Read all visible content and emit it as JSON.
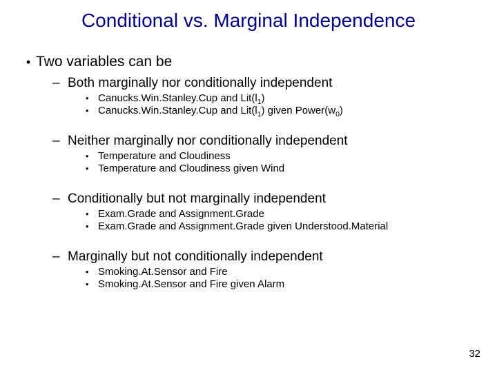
{
  "colors": {
    "title": "#000080",
    "text": "#000000",
    "background": "#ffffff"
  },
  "title": "Conditional vs. Marginal Independence",
  "lvl1": "Two variables can be",
  "sections": [
    {
      "heading": "Both marginally nor conditionally independent",
      "items": [
        {
          "pre": "Canucks.Win.Stanley.Cup and Lit(l",
          "sub": "1",
          "post": ")"
        },
        {
          "pre": "Canucks.Win.Stanley.Cup and Lit(l",
          "sub": "1",
          "mid": ") given Power(w",
          "sub2": "0",
          "post2": ")"
        }
      ]
    },
    {
      "heading": "Neither marginally nor conditionally independent",
      "items": [
        {
          "pre": "Temperature and Cloudiness"
        },
        {
          "pre": "Temperature and Cloudiness given Wind"
        }
      ]
    },
    {
      "heading": "Conditionally but not marginally independent",
      "items": [
        {
          "pre": "Exam.Grade and Assignment.Grade"
        },
        {
          "pre": "Exam.Grade and Assignment.Grade given Understood.Material"
        }
      ]
    },
    {
      "heading": "Marginally but not conditionally independent",
      "items": [
        {
          "pre": "Smoking.At.Sensor and Fire"
        },
        {
          "pre": "Smoking.At.Sensor and Fire given Alarm"
        }
      ]
    }
  ],
  "pagenum": "32"
}
